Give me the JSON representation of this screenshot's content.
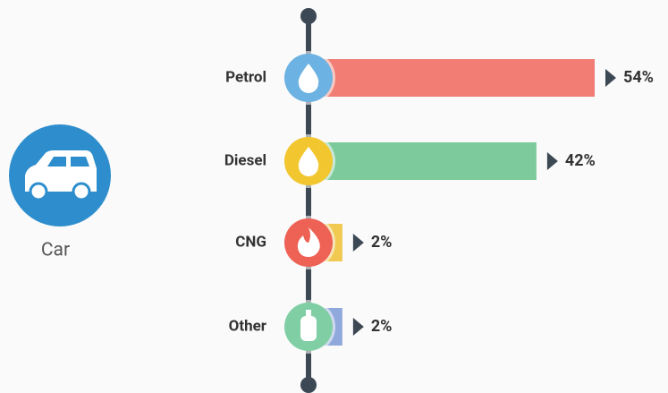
{
  "chart_data": {
    "type": "bar",
    "label": "Car",
    "categories": [
      "Petrol",
      "Diesel",
      "CNG",
      "Other"
    ],
    "values": [
      54,
      42,
      2,
      2
    ],
    "value_labels": [
      "54%",
      "42%",
      "2%",
      "2%"
    ],
    "colors": [
      "#f27d74",
      "#7dcb9c",
      "#f1c951",
      "#90a9dd"
    ],
    "icon_colors": [
      "#6cb2e2",
      "#f2c62e",
      "#ee6155",
      "#80cfa4"
    ]
  }
}
